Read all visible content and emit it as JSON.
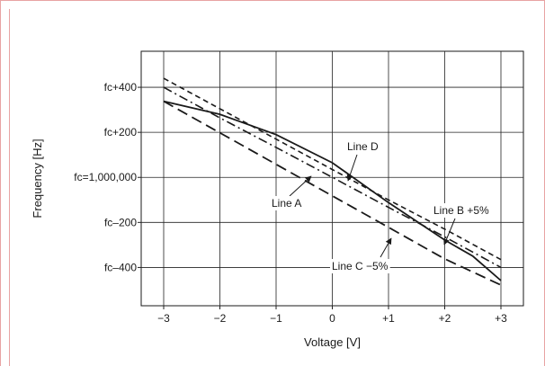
{
  "colors": {
    "frame": "#e8a3a3",
    "ink": "#1a1a1a",
    "grid": "#222222"
  },
  "chart_data": {
    "type": "line",
    "title": "",
    "xlabel": "Voltage [V]",
    "ylabel": "Frequency [Hz]",
    "xlim": [
      -3.4,
      3.4
    ],
    "ylim": [
      -570,
      560
    ],
    "grid": true,
    "x_ticks": [
      {
        "value": -3,
        "label": "−3"
      },
      {
        "value": -2,
        "label": "−2"
      },
      {
        "value": -1,
        "label": "−1"
      },
      {
        "value": 0,
        "label": "0"
      },
      {
        "value": 1,
        "label": "+1"
      },
      {
        "value": 2,
        "label": "+2"
      },
      {
        "value": 3,
        "label": "+3"
      }
    ],
    "y_ticks": [
      {
        "value": 400,
        "label": "fc+400"
      },
      {
        "value": 200,
        "label": "fc+200"
      },
      {
        "value": 0,
        "label": "fc=1,000,000"
      },
      {
        "value": -200,
        "label": "fc–200"
      },
      {
        "value": -400,
        "label": "fc–400"
      }
    ],
    "series": [
      {
        "key": "line_a",
        "style": "dashdot",
        "points": [
          [
            -3,
            400
          ],
          [
            -2,
            264
          ],
          [
            -1,
            133
          ],
          [
            0,
            0
          ],
          [
            1,
            -133
          ],
          [
            2,
            -264
          ],
          [
            3,
            -400
          ]
        ]
      },
      {
        "key": "line_b",
        "style": "shortdash",
        "points": [
          [
            -3,
            440
          ],
          [
            -2,
            305
          ],
          [
            -1,
            170
          ],
          [
            0,
            35
          ],
          [
            1,
            -100
          ],
          [
            2,
            -230
          ],
          [
            3,
            -365
          ]
        ]
      },
      {
        "key": "line_c",
        "style": "longdash",
        "points": [
          [
            -3,
            338
          ],
          [
            -2,
            198
          ],
          [
            -1,
            58
          ],
          [
            0,
            -82
          ],
          [
            1,
            -222
          ],
          [
            2,
            -362
          ],
          [
            3,
            -478
          ]
        ]
      },
      {
        "key": "line_d",
        "style": "solid",
        "points": [
          [
            -3,
            338
          ],
          [
            -2,
            280
          ],
          [
            -1,
            190
          ],
          [
            0,
            65
          ],
          [
            1,
            -112
          ],
          [
            2,
            -278
          ],
          [
            2.5,
            -350
          ],
          [
            3,
            -458
          ]
        ]
      }
    ],
    "annotations": [
      {
        "key": "line_d",
        "text": "Line D",
        "point": [
          0.5,
          -10
        ]
      },
      {
        "key": "line_a",
        "text": "Line A",
        "point": [
          -0.3,
          15
        ]
      },
      {
        "key": "line_b",
        "text": "Line B +5%",
        "point": [
          2.4,
          -288
        ]
      },
      {
        "key": "line_c",
        "text": "Line C −5%",
        "point": [
          1.3,
          -273
        ]
      }
    ]
  }
}
